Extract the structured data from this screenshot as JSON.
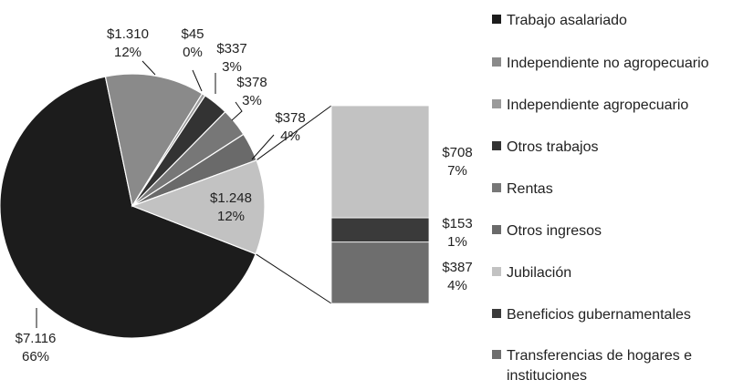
{
  "chart_data": {
    "type": "pie",
    "title": "",
    "pie": {
      "slices": [
        {
          "legend_index": 0,
          "value_label": "$7.116",
          "percent_label": "66%",
          "value": 7116,
          "color": "#1c1c1c"
        },
        {
          "legend_index": 1,
          "value_label": "$1.310",
          "percent_label": "12%",
          "value": 1310,
          "color": "#8a8a8a"
        },
        {
          "legend_index": 2,
          "value_label": "$45",
          "percent_label": "0%",
          "value": 45,
          "color": "#9a9a9a"
        },
        {
          "legend_index": 3,
          "value_label": "$337",
          "percent_label": "3%",
          "value": 337,
          "color": "#333333"
        },
        {
          "legend_index": 4,
          "value_label": "$378",
          "percent_label": "3%",
          "value": 378,
          "color": "#777777"
        },
        {
          "legend_index": 5,
          "value_label": "$378",
          "percent_label": "4%",
          "value": 378,
          "color": "#6a6a6a"
        },
        {
          "value_label": "$1.248",
          "percent_label": "12%",
          "value": 1248,
          "color": "#c2c2c2"
        }
      ]
    },
    "breakdown_bar": {
      "segments": [
        {
          "legend_index": 6,
          "value_label": "$708",
          "percent_label": "7%",
          "value": 708,
          "color": "#c2c2c2"
        },
        {
          "legend_index": 7,
          "value_label": "$153",
          "percent_label": "1%",
          "value": 153,
          "color": "#3a3a3a"
        },
        {
          "legend_index": 8,
          "value_label": "$387",
          "percent_label": "4%",
          "value": 387,
          "color": "#6e6e6e"
        }
      ]
    },
    "legend": {
      "placement": "right",
      "entries": [
        {
          "label": "Trabajo asalariado",
          "color": "#1c1c1c"
        },
        {
          "label": "Independiente no agropecuario",
          "color": "#8a8a8a"
        },
        {
          "label": "Independiente agropecuario",
          "color": "#9a9a9a"
        },
        {
          "label": "Otros trabajos",
          "color": "#333333"
        },
        {
          "label": "Rentas",
          "color": "#777777"
        },
        {
          "label": "Otros ingresos",
          "color": "#6a6a6a"
        },
        {
          "label": "Jubilación",
          "color": "#c2c2c2"
        },
        {
          "label": "Beneficios gubernamentales",
          "color": "#3a3a3a"
        },
        {
          "label": "Transferencias de hogares e instituciones",
          "label_lines": [
            "Transferencias de hogares e",
            "instituciones"
          ],
          "color": "#6e6e6e"
        }
      ]
    }
  }
}
